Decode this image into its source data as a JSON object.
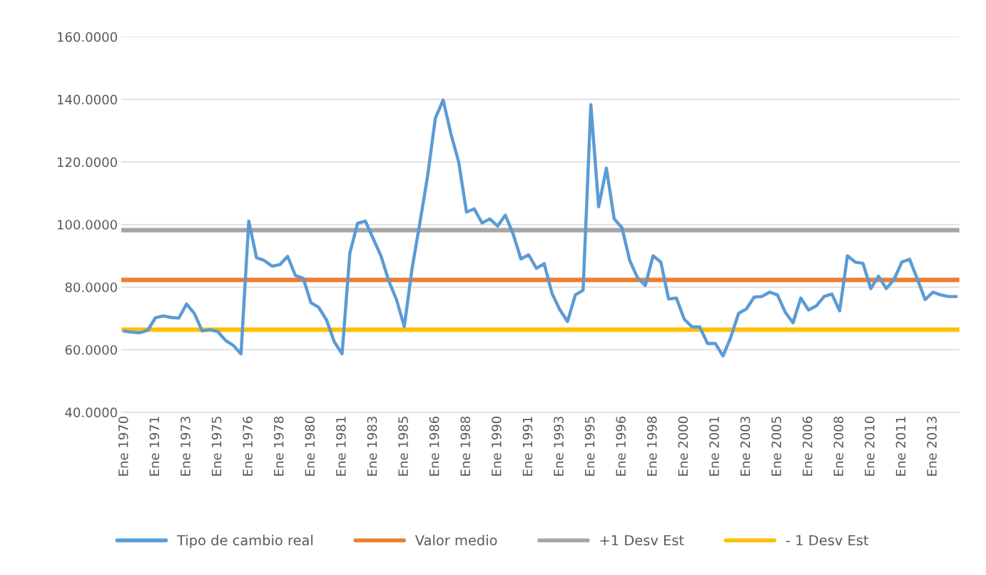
{
  "chart_data": {
    "type": "line",
    "categories": [
      "Ene 1970",
      null,
      null,
      null,
      "Ene 1971",
      null,
      null,
      null,
      "Ene 1973",
      null,
      null,
      null,
      "Ene 1975",
      null,
      null,
      null,
      "Ene 1976",
      null,
      null,
      null,
      "Ene 1978",
      null,
      null,
      null,
      "Ene 1980",
      null,
      null,
      null,
      "Ene 1981",
      null,
      null,
      null,
      "Ene 1983",
      null,
      null,
      null,
      "Ene 1985",
      null,
      null,
      null,
      "Ene 1986",
      null,
      null,
      null,
      "Ene 1988",
      null,
      null,
      null,
      "Ene 1990",
      null,
      null,
      null,
      "Ene 1991",
      null,
      null,
      null,
      "Ene 1993",
      null,
      null,
      null,
      "Ene 1995",
      null,
      null,
      null,
      "Ene 1996",
      null,
      null,
      null,
      "Ene 1998",
      null,
      null,
      null,
      "Ene 2000",
      null,
      null,
      null,
      "Ene 2001",
      null,
      null,
      null,
      "Ene 2003",
      null,
      null,
      null,
      "Ene 2005",
      null,
      null,
      null,
      "Ene 2006",
      null,
      null,
      null,
      "Ene 2008",
      null,
      null,
      null,
      "Ene 2010",
      null,
      null,
      null,
      "Ene 2011",
      null,
      null,
      null,
      "Ene 2013",
      null,
      null,
      null
    ],
    "series": [
      {
        "name": "Tipo de cambio real",
        "color": "#5b9bd5",
        "values": [
          65.9,
          65.6,
          65.4,
          66.2,
          70.2,
          70.8,
          70.3,
          70.1,
          74.6,
          71.6,
          66.0,
          66.4,
          65.8,
          63.0,
          61.4,
          58.7,
          101.1,
          89.4,
          88.5,
          86.7,
          87.2,
          89.8,
          83.7,
          82.8,
          75.0,
          73.5,
          69.5,
          62.5,
          58.7,
          90.9,
          100.4,
          101.1,
          95.5,
          90.0,
          82.0,
          76.0,
          67.4,
          85.9,
          100.4,
          115.5,
          134,
          139.8,
          129,
          120,
          104,
          105,
          100.5,
          101.8,
          99.5,
          103,
          97,
          89,
          90.3,
          86,
          87.5,
          78,
          72.8,
          69,
          77.5,
          79,
          138.3,
          105.7,
          118,
          101.8,
          99,
          88.5,
          83,
          80.5,
          90,
          88,
          76.2,
          76.5,
          69.8,
          67.3,
          67.3,
          62,
          62,
          58,
          64,
          71.6,
          73,
          76.8,
          77,
          78.4,
          77.5,
          72,
          68.6,
          76.5,
          72.7,
          74,
          77,
          77.8,
          72.4,
          90,
          88,
          87.6,
          79.5,
          83.5,
          79.5,
          82.5,
          88,
          88.9,
          82.5,
          76,
          78.4,
          77.5,
          77,
          77
        ]
      }
    ],
    "ref_lines": [
      {
        "axis": "y",
        "value": 82.3,
        "label": "Valor medio",
        "color": "#ed7d31"
      },
      {
        "axis": "y",
        "value": 98.2,
        "label": "+1 Desv Est",
        "color": "#a5a5a5"
      },
      {
        "axis": "y",
        "value": 66.4,
        "label": "- 1 Desv Est",
        "color": "#ffc000"
      }
    ],
    "ylim": [
      40,
      160
    ],
    "yticks": [
      {
        "value": 40,
        "label": "40.0000"
      },
      {
        "value": 60,
        "label": "60.0000"
      },
      {
        "value": 80,
        "label": "80.0000"
      },
      {
        "value": 100,
        "label": "100.0000"
      },
      {
        "value": 120,
        "label": "120.0000"
      },
      {
        "value": 140,
        "label": "140.0000"
      },
      {
        "value": 160,
        "label": "160.0000"
      }
    ],
    "grid": "y",
    "legend": "bottom",
    "line_style": "solid",
    "marker": "none"
  }
}
